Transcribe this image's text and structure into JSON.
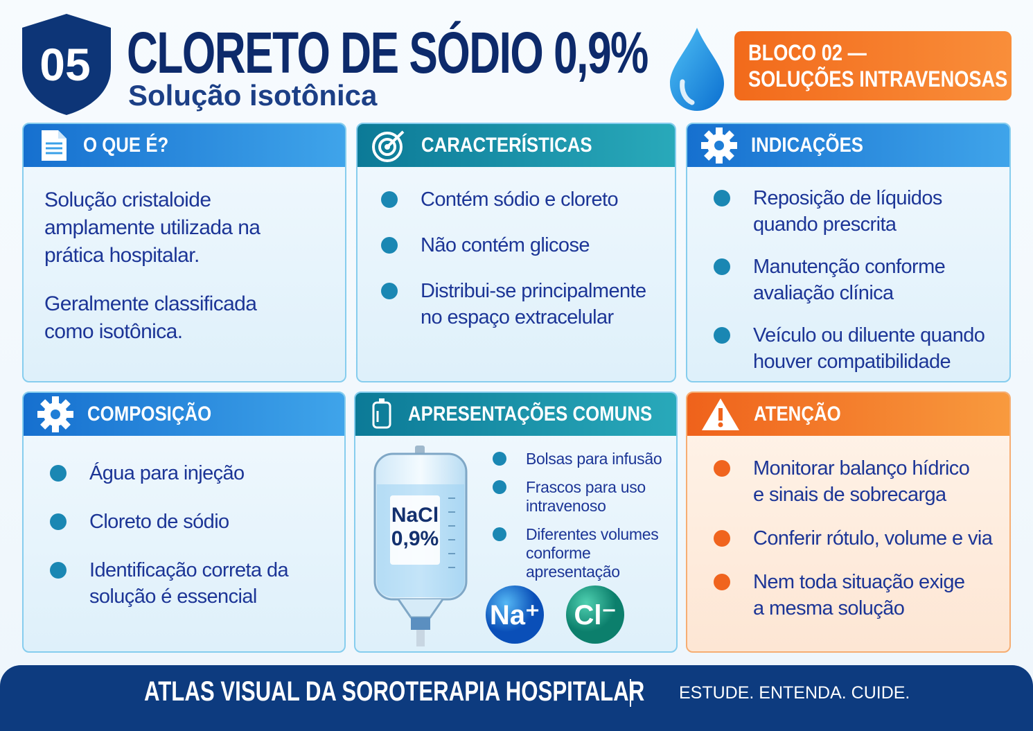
{
  "header": {
    "number": "05",
    "title": "CLORETO DE SÓDIO 0,9%",
    "subtitle": "Solução isotônica",
    "block": [
      "BLOCO 02 —",
      "SOLUÇÕES INTRAVENOSAS"
    ]
  },
  "cards": [
    {
      "title": "O QUE É?",
      "paragraphs": [
        [
          "Solução cristaloide",
          "amplamente utilizada na",
          "prática hospitalar."
        ],
        [
          "Geralmente classificada",
          "como isotônica."
        ]
      ]
    },
    {
      "title": "CARACTERÍSTICAS",
      "items": [
        [
          "Contém sódio e cloreto"
        ],
        [
          "Não contém glicose"
        ],
        [
          "Distribui-se principalmente",
          "no espaço extracelular"
        ]
      ]
    },
    {
      "title": "INDICAÇÕES",
      "items": [
        [
          "Reposição de líquidos",
          "quando prescrita"
        ],
        [
          "Manutenção conforme",
          "avaliação clínica"
        ],
        [
          "Veículo ou diluente quando",
          "houver compatibilidade"
        ]
      ]
    },
    {
      "title": "COMPOSIÇÃO",
      "items": [
        [
          "Água para injeção"
        ],
        [
          "Cloreto de sódio"
        ],
        [
          "Identificação correta da",
          "solução é essencial"
        ]
      ]
    },
    {
      "title": "APRESENTAÇÕES COMUNS",
      "items": [
        [
          "Bolsas para infusão"
        ],
        [
          "Frascos para uso",
          "intravenoso"
        ],
        [
          "Diferentes volumes",
          "conforme",
          "apresentação"
        ]
      ],
      "bag_label": [
        "NaCl",
        "0,9%"
      ],
      "ions": [
        "Na⁺",
        "Cl⁻"
      ]
    },
    {
      "title": "ATENÇÃO",
      "items": [
        [
          "Monitorar balanço hídrico",
          "e sinais de sobrecarga"
        ],
        [
          "Conferir rótulo, volume e via"
        ],
        [
          "Nem toda situação exige",
          "a mesma solução"
        ]
      ]
    }
  ],
  "footer": {
    "title": "ATLAS VISUAL DA SOROTERAPIA HOSPITALAR",
    "tagline": "ESTUDE. ENTENDA. CUIDE."
  }
}
